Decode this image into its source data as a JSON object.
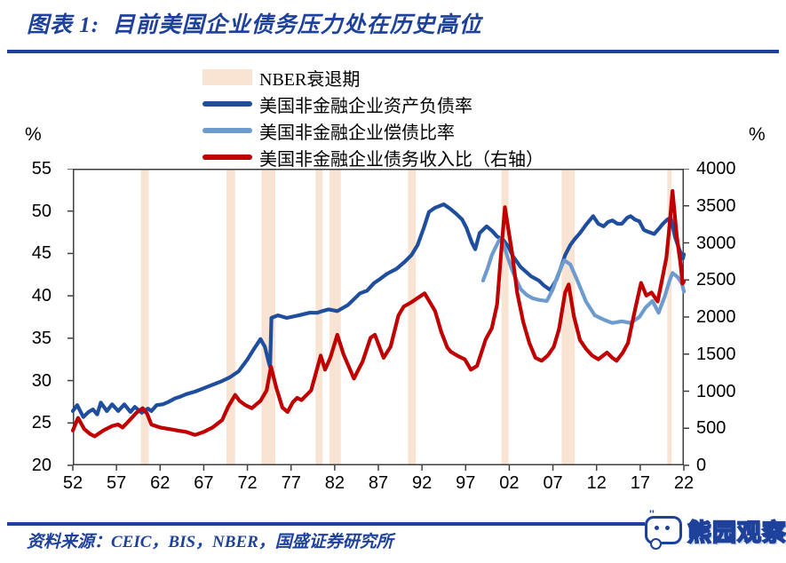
{
  "header": {
    "title": "图表 1:  目前美国企业债务压力处在历史高位"
  },
  "colors": {
    "accent_blue": "#1E419B",
    "series_dark_blue": "#1F4E9E",
    "series_light_blue": "#6E9BCD",
    "series_red": "#C00000",
    "recession_band": "#F9E3D3",
    "axis_line": "#3F3F3F",
    "text": "#000000"
  },
  "legend": {
    "items": [
      {
        "label": "NBER衰退期",
        "swatch": "band",
        "color": "#F9E3D3"
      },
      {
        "label": "美国非金融企业资产负债率",
        "swatch": "line",
        "color": "#1F4E9E"
      },
      {
        "label": "美国非金融企业偿债比率",
        "swatch": "line",
        "color": "#6E9BCD"
      },
      {
        "label": "美国非金融企业债务收入比（右轴）",
        "swatch": "line",
        "color": "#C00000"
      }
    ]
  },
  "chart_data": {
    "type": "line",
    "title": "目前美国企业债务压力处在历史高位",
    "grid": false,
    "legend_position": "top",
    "left_axis": {
      "label": "%",
      "min": 20,
      "max": 55,
      "ticks": [
        55,
        50,
        45,
        40,
        35,
        30,
        25,
        20
      ]
    },
    "right_axis": {
      "label": "%",
      "min": 0,
      "max": 4000,
      "ticks": [
        4000,
        3500,
        3000,
        2500,
        2000,
        1500,
        1000,
        500,
        0
      ]
    },
    "x_axis": {
      "min": 1952,
      "max": 2022,
      "tick_years": [
        1952,
        1957,
        1962,
        1967,
        1972,
        1977,
        1982,
        1987,
        1992,
        1997,
        2002,
        2007,
        2012,
        2017,
        2022
      ],
      "tick_labels": [
        "52",
        "57",
        "62",
        "67",
        "72",
        "77",
        "82",
        "87",
        "92",
        "97",
        "02",
        "07",
        "12",
        "17",
        "22"
      ]
    },
    "recession_bands": [
      [
        1959.8,
        1960.7
      ],
      [
        1969.6,
        1970.6
      ],
      [
        1973.6,
        1975.2
      ],
      [
        1979.8,
        1980.6
      ],
      [
        1981.4,
        1982.7
      ],
      [
        1990.4,
        1991.3
      ],
      [
        2001.1,
        2001.9
      ],
      [
        2008.0,
        2009.5
      ],
      [
        2020.1,
        2020.6
      ]
    ],
    "series": [
      {
        "name": "美国非金融企业资产负债率",
        "axis": "left",
        "color": "#1F4E9E",
        "data": [
          [
            1952.0,
            26.4
          ],
          [
            1952.5,
            27.1
          ],
          [
            1953.2,
            25.7
          ],
          [
            1953.8,
            26.3
          ],
          [
            1954.3,
            26.6
          ],
          [
            1954.8,
            26.0
          ],
          [
            1955.2,
            27.4
          ],
          [
            1955.9,
            26.4
          ],
          [
            1956.5,
            27.2
          ],
          [
            1957.2,
            26.4
          ],
          [
            1957.9,
            27.2
          ],
          [
            1958.6,
            26.3
          ],
          [
            1959.1,
            26.9
          ],
          [
            1959.9,
            26.2
          ],
          [
            1960.6,
            26.7
          ],
          [
            1961.0,
            26.4
          ],
          [
            1961.6,
            27.1
          ],
          [
            1962.3,
            27.2
          ],
          [
            1963.0,
            27.5
          ],
          [
            1963.7,
            27.9
          ],
          [
            1964.3,
            28.1
          ],
          [
            1965.0,
            28.4
          ],
          [
            1966.0,
            28.7
          ],
          [
            1967.0,
            29.1
          ],
          [
            1968.0,
            29.5
          ],
          [
            1969.0,
            29.9
          ],
          [
            1970.0,
            30.4
          ],
          [
            1971.0,
            31.1
          ],
          [
            1972.0,
            32.5
          ],
          [
            1972.8,
            33.8
          ],
          [
            1973.5,
            34.9
          ],
          [
            1974.0,
            34.0
          ],
          [
            1974.4,
            32.3
          ],
          [
            1974.6,
            31.6
          ],
          [
            1974.75,
            37.4
          ],
          [
            1975.5,
            37.7
          ],
          [
            1976.5,
            37.4
          ],
          [
            1977.9,
            37.7
          ],
          [
            1979.1,
            38.0
          ],
          [
            1980.0,
            38.0
          ],
          [
            1980.6,
            38.2
          ],
          [
            1981.3,
            38.4
          ],
          [
            1982.3,
            38.2
          ],
          [
            1983.5,
            38.9
          ],
          [
            1984.3,
            39.7
          ],
          [
            1984.9,
            40.3
          ],
          [
            1985.7,
            40.6
          ],
          [
            1986.5,
            41.5
          ],
          [
            1987.2,
            42.0
          ],
          [
            1988.0,
            42.6
          ],
          [
            1989.1,
            43.2
          ],
          [
            1990.0,
            44.0
          ],
          [
            1990.8,
            44.8
          ],
          [
            1991.5,
            46.0
          ],
          [
            1992.2,
            48.0
          ],
          [
            1992.8,
            49.9
          ],
          [
            1993.5,
            50.4
          ],
          [
            1994.5,
            50.8
          ],
          [
            1995.2,
            50.3
          ],
          [
            1995.9,
            49.7
          ],
          [
            1996.6,
            49.0
          ],
          [
            1997.1,
            48.0
          ],
          [
            1997.7,
            46.3
          ],
          [
            1998.1,
            45.5
          ],
          [
            1998.6,
            47.4
          ],
          [
            1999.4,
            48.2
          ],
          [
            2000.0,
            47.7
          ],
          [
            2000.6,
            47.0
          ],
          [
            2001.3,
            46.6
          ],
          [
            2001.9,
            45.8
          ],
          [
            2002.4,
            44.7
          ],
          [
            2003.3,
            43.4
          ],
          [
            2004.5,
            42.3
          ],
          [
            2005.4,
            41.8
          ],
          [
            2006.0,
            41.2
          ],
          [
            2006.7,
            40.7
          ],
          [
            2007.4,
            41.9
          ],
          [
            2007.9,
            43.3
          ],
          [
            2008.4,
            44.8
          ],
          [
            2009.0,
            46.0
          ],
          [
            2009.5,
            46.7
          ],
          [
            2010.1,
            47.4
          ],
          [
            2010.8,
            48.4
          ],
          [
            2011.6,
            49.4
          ],
          [
            2012.2,
            48.5
          ],
          [
            2012.8,
            48.2
          ],
          [
            2013.3,
            48.7
          ],
          [
            2013.8,
            48.9
          ],
          [
            2014.4,
            48.5
          ],
          [
            2014.9,
            48.5
          ],
          [
            2015.5,
            49.2
          ],
          [
            2015.9,
            49.4
          ],
          [
            2016.4,
            49.0
          ],
          [
            2016.9,
            48.8
          ],
          [
            2017.4,
            47.8
          ],
          [
            2017.8,
            47.6
          ],
          [
            2018.6,
            47.3
          ],
          [
            2019.2,
            48.0
          ],
          [
            2019.6,
            48.5
          ],
          [
            2020.1,
            49.0
          ],
          [
            2020.5,
            49.2
          ],
          [
            2021.0,
            46.9
          ],
          [
            2021.5,
            45.4
          ],
          [
            2021.9,
            44.4
          ],
          [
            2022.0,
            44.9
          ]
        ]
      },
      {
        "name": "美国非金融企业偿债比率",
        "axis": "left",
        "color": "#6E9BCD",
        "data": [
          [
            1999.0,
            41.8
          ],
          [
            1999.5,
            43.2
          ],
          [
            2000.0,
            44.8
          ],
          [
            2000.8,
            46.5
          ],
          [
            2001.1,
            46.8
          ],
          [
            2001.9,
            44.3
          ],
          [
            2002.5,
            42.6
          ],
          [
            2003.3,
            40.8
          ],
          [
            2004.0,
            40.1
          ],
          [
            2004.7,
            39.7
          ],
          [
            2005.5,
            39.5
          ],
          [
            2006.3,
            39.4
          ],
          [
            2007.0,
            40.8
          ],
          [
            2007.5,
            42.3
          ],
          [
            2008.3,
            44.2
          ],
          [
            2009.0,
            43.7
          ],
          [
            2009.8,
            41.8
          ],
          [
            2010.8,
            39.3
          ],
          [
            2011.8,
            37.7
          ],
          [
            2012.8,
            37.2
          ],
          [
            2013.8,
            36.8
          ],
          [
            2014.9,
            37.0
          ],
          [
            2015.9,
            36.8
          ],
          [
            2016.9,
            37.5
          ],
          [
            2017.6,
            38.6
          ],
          [
            2018.4,
            39.4
          ],
          [
            2019.1,
            38.0
          ],
          [
            2019.8,
            39.9
          ],
          [
            2020.3,
            41.6
          ],
          [
            2020.7,
            42.7
          ],
          [
            2021.3,
            42.2
          ],
          [
            2021.8,
            41.4
          ],
          [
            2022.0,
            40.5
          ]
        ]
      },
      {
        "name": "美国非金融企业债务收入比（右轴）",
        "axis": "right",
        "color": "#C00000",
        "data": [
          [
            1952.0,
            470
          ],
          [
            1952.6,
            640
          ],
          [
            1953.3,
            490
          ],
          [
            1954.0,
            420
          ],
          [
            1954.5,
            390
          ],
          [
            1955.5,
            470
          ],
          [
            1956.5,
            530
          ],
          [
            1957.2,
            550
          ],
          [
            1957.7,
            510
          ],
          [
            1958.2,
            570
          ],
          [
            1959.3,
            710
          ],
          [
            1960.0,
            770
          ],
          [
            1960.5,
            700
          ],
          [
            1961.0,
            550
          ],
          [
            1962.0,
            510
          ],
          [
            1963.0,
            490
          ],
          [
            1964.0,
            470
          ],
          [
            1965.0,
            450
          ],
          [
            1966.0,
            410
          ],
          [
            1967.0,
            450
          ],
          [
            1968.0,
            510
          ],
          [
            1969.1,
            610
          ],
          [
            1969.8,
            790
          ],
          [
            1970.6,
            950
          ],
          [
            1971.1,
            870
          ],
          [
            1971.8,
            810
          ],
          [
            1972.5,
            770
          ],
          [
            1973.5,
            870
          ],
          [
            1974.2,
            1010
          ],
          [
            1974.7,
            1330
          ],
          [
            1975.3,
            1050
          ],
          [
            1976.0,
            780
          ],
          [
            1976.6,
            720
          ],
          [
            1977.2,
            850
          ],
          [
            1977.7,
            910
          ],
          [
            1978.2,
            880
          ],
          [
            1979.3,
            1010
          ],
          [
            1980.4,
            1480
          ],
          [
            1980.9,
            1290
          ],
          [
            1981.5,
            1450
          ],
          [
            1982.3,
            1760
          ],
          [
            1983.0,
            1500
          ],
          [
            1984.2,
            1170
          ],
          [
            1985.2,
            1400
          ],
          [
            1986.1,
            1720
          ],
          [
            1986.6,
            1760
          ],
          [
            1987.6,
            1450
          ],
          [
            1988.4,
            1600
          ],
          [
            1989.3,
            2020
          ],
          [
            1989.9,
            2140
          ],
          [
            1990.8,
            2200
          ],
          [
            1991.8,
            2280
          ],
          [
            1992.3,
            2320
          ],
          [
            1993.5,
            2080
          ],
          [
            1994.2,
            1800
          ],
          [
            1994.9,
            1590
          ],
          [
            1995.3,
            1530
          ],
          [
            1996.2,
            1470
          ],
          [
            1996.9,
            1430
          ],
          [
            1997.6,
            1290
          ],
          [
            1998.3,
            1340
          ],
          [
            1999.3,
            1700
          ],
          [
            2000.0,
            1850
          ],
          [
            2000.6,
            2170
          ],
          [
            2001.0,
            2770
          ],
          [
            2001.5,
            3480
          ],
          [
            2002.3,
            2880
          ],
          [
            2002.9,
            2330
          ],
          [
            2003.6,
            1930
          ],
          [
            2004.3,
            1650
          ],
          [
            2005.0,
            1450
          ],
          [
            2005.7,
            1410
          ],
          [
            2006.4,
            1480
          ],
          [
            2007.1,
            1600
          ],
          [
            2007.7,
            1840
          ],
          [
            2008.4,
            2330
          ],
          [
            2008.8,
            2440
          ],
          [
            2009.4,
            2010
          ],
          [
            2010.1,
            1690
          ],
          [
            2010.8,
            1570
          ],
          [
            2011.5,
            1480
          ],
          [
            2012.2,
            1430
          ],
          [
            2013.2,
            1520
          ],
          [
            2013.8,
            1450
          ],
          [
            2014.3,
            1410
          ],
          [
            2015.0,
            1520
          ],
          [
            2015.6,
            1650
          ],
          [
            2016.1,
            1930
          ],
          [
            2016.6,
            2200
          ],
          [
            2017.1,
            2460
          ],
          [
            2017.7,
            2290
          ],
          [
            2018.3,
            2330
          ],
          [
            2019.0,
            2210
          ],
          [
            2019.5,
            2500
          ],
          [
            2020.0,
            2800
          ],
          [
            2020.3,
            3160
          ],
          [
            2020.7,
            3700
          ],
          [
            2021.2,
            3080
          ],
          [
            2021.6,
            2730
          ],
          [
            2021.85,
            2450
          ],
          [
            2022.0,
            2480
          ]
        ]
      }
    ]
  },
  "footer": {
    "source": "资料来源：CEIC，BIS，NBER，国盛证券研究所",
    "brand": "熊园观察"
  }
}
